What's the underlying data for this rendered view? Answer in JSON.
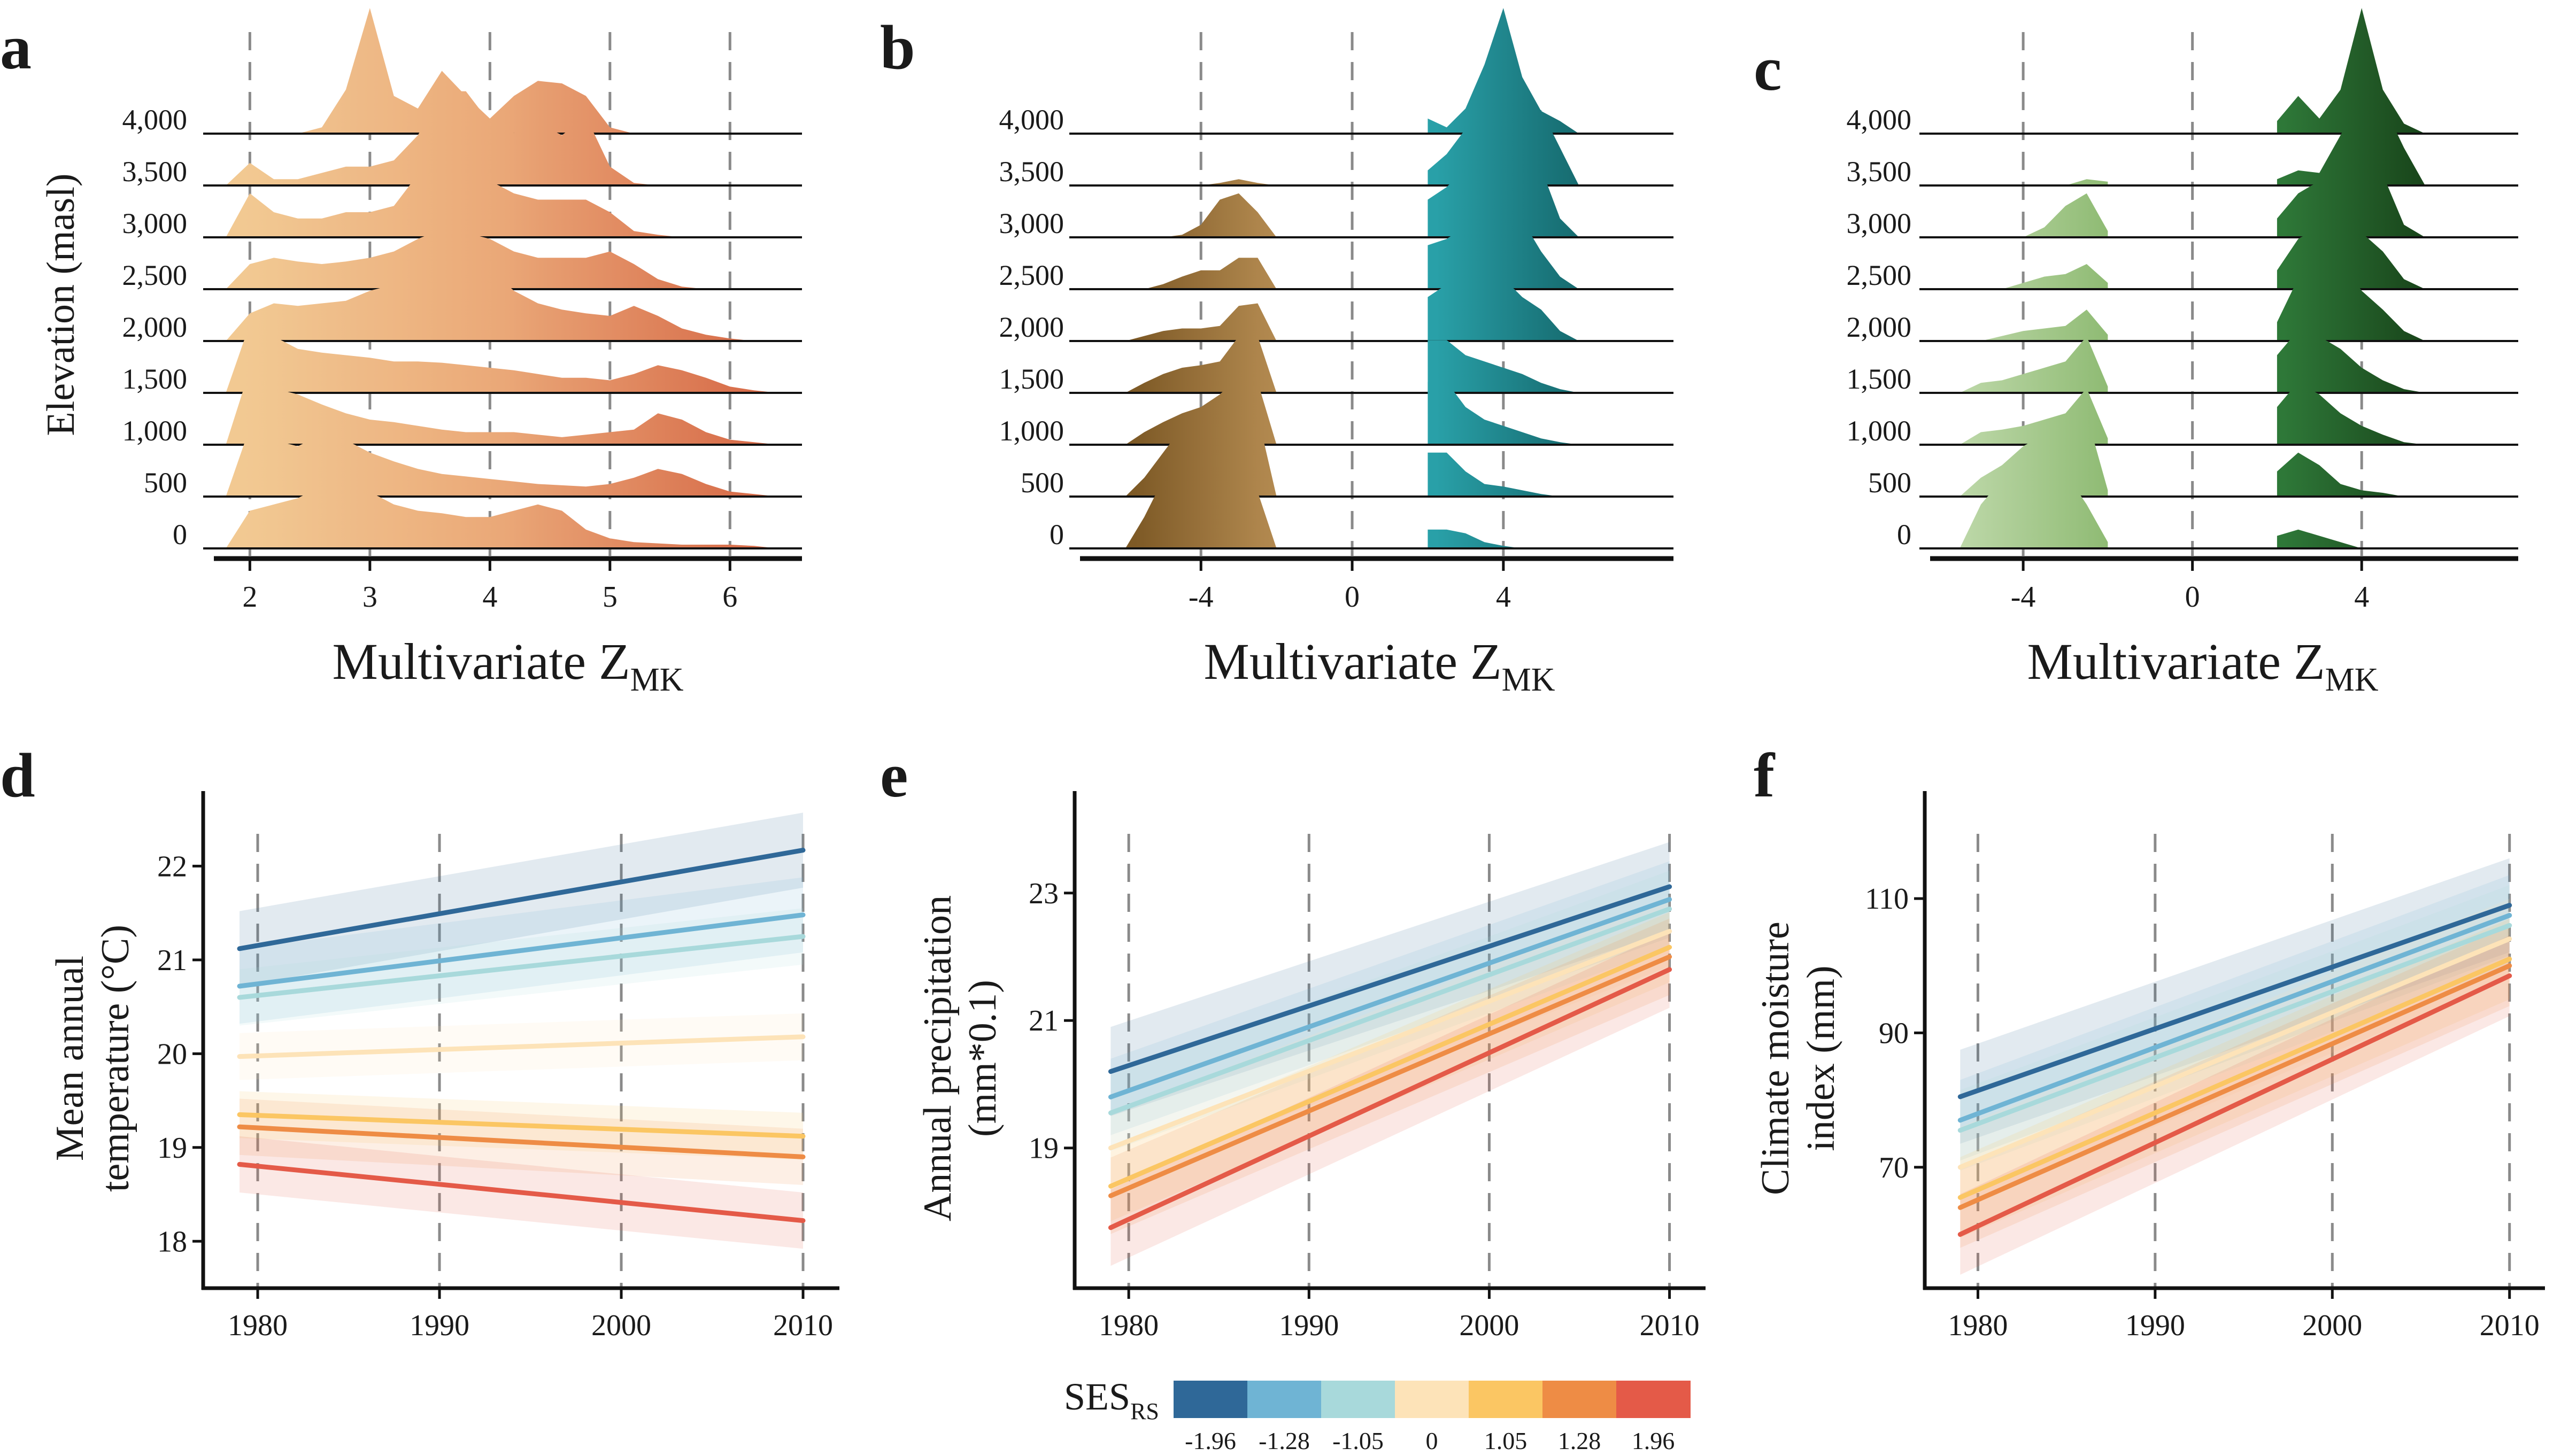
{
  "panels": {
    "a": {
      "label": "a",
      "ylabel": "Elevation (masl)",
      "xlabel_main": "Multivariate Z",
      "xlabel_sub": "MK",
      "xticks": [
        "2",
        "3",
        "4",
        "5",
        "6"
      ],
      "palette": [
        "#f2c992",
        "#eaa878",
        "#d76b49"
      ]
    },
    "b": {
      "label": "b",
      "xlabel_main": "Multivariate Z",
      "xlabel_sub": "MK",
      "xticks": [
        "-4",
        "0",
        "4"
      ],
      "palette_neg": [
        "#7a5623",
        "#b58c52"
      ],
      "palette_pos": [
        "#2aa3ab",
        "#166a6e"
      ]
    },
    "c": {
      "label": "c",
      "xlabel_main": "Multivariate Z",
      "xlabel_sub": "MK",
      "xticks": [
        "-4",
        "0",
        "4"
      ],
      "palette_neg": [
        "#c4dcb0",
        "#8fbb74"
      ],
      "palette_pos": [
        "#2f7a39",
        "#153d16"
      ]
    },
    "d": {
      "label": "d",
      "ylabel_line1": "Mean annual",
      "ylabel_line2": "temperature (°C)",
      "xticks": [
        "1980",
        "1990",
        "2000",
        "2010"
      ],
      "yticks": [
        "18",
        "19",
        "20",
        "21",
        "22"
      ]
    },
    "e": {
      "label": "e",
      "ylabel_line1": "Annual precipitation",
      "ylabel_line2": "(mm*0.1)",
      "xticks": [
        "1980",
        "1990",
        "2000",
        "2010"
      ],
      "yticks": [
        "19",
        "21",
        "23"
      ]
    },
    "f": {
      "label": "f",
      "ylabel_line1": "Climate moisture",
      "ylabel_line2": "index (mm)",
      "xticks": [
        "1980",
        "1990",
        "2000",
        "2010"
      ],
      "yticks": [
        "70",
        "90",
        "110"
      ]
    }
  },
  "elevations": [
    "4,000",
    "3,500",
    "3,000",
    "2,500",
    "2,000",
    "1,500",
    "1,000",
    "500",
    "0"
  ],
  "legend": {
    "title_main": "SES",
    "title_sub": "RS",
    "ticks": [
      "-1.96",
      "-1.28",
      "-1.05",
      "0",
      "1.05",
      "1.28",
      "1.96"
    ],
    "colors": [
      "#2f6898",
      "#6fb4d4",
      "#a8d9db",
      "#fde3b8",
      "#fbc663",
      "#ee8c45",
      "#e45a48"
    ]
  },
  "chart_data": [
    {
      "panel": "a",
      "type": "area",
      "subtype": "ridgeline density",
      "xlabel": "Multivariate Z_MK",
      "ylabel": "Elevation (masl)",
      "xlim": [
        1.7,
        6.6
      ],
      "x": [
        1.8,
        2.0,
        2.2,
        2.4,
        2.6,
        2.8,
        3.0,
        3.2,
        3.4,
        3.6,
        3.8,
        4.0,
        4.2,
        4.4,
        4.6,
        4.8,
        5.0,
        5.2,
        5.4,
        5.6,
        5.8,
        6.0,
        6.2,
        6.4
      ],
      "series": [
        {
          "name": "4,000",
          "values": [
            0,
            0,
            0,
            0,
            0.05,
            0.35,
            1.0,
            0.3,
            0.2,
            0.5,
            0.3,
            0.12,
            0.3,
            0.42,
            0.4,
            0.3,
            0.05,
            0,
            0,
            0,
            0,
            0,
            0,
            0
          ]
        },
        {
          "name": "3,500",
          "values": [
            0,
            0.18,
            0.05,
            0.05,
            0.1,
            0.15,
            0.15,
            0.2,
            0.4,
            0.75,
            0.75,
            0.5,
            0.42,
            0.5,
            0.4,
            0.55,
            0.15,
            0.02,
            0,
            0,
            0,
            0,
            0,
            0
          ]
        },
        {
          "name": "3,000",
          "values": [
            0,
            0.35,
            0.2,
            0.15,
            0.15,
            0.2,
            0.2,
            0.25,
            0.5,
            0.8,
            0.65,
            0.45,
            0.35,
            0.3,
            0.3,
            0.3,
            0.2,
            0.05,
            0.02,
            0,
            0,
            0,
            0,
            0
          ]
        },
        {
          "name": "2,500",
          "values": [
            0,
            0.2,
            0.25,
            0.22,
            0.2,
            0.22,
            0.25,
            0.3,
            0.4,
            0.48,
            0.45,
            0.4,
            0.3,
            0.25,
            0.25,
            0.25,
            0.3,
            0.2,
            0.08,
            0.02,
            0,
            0,
            0,
            0
          ]
        },
        {
          "name": "2,000",
          "values": [
            0,
            0.22,
            0.3,
            0.28,
            0.3,
            0.32,
            0.4,
            0.45,
            0.5,
            0.52,
            0.55,
            0.58,
            0.4,
            0.3,
            0.25,
            0.22,
            0.2,
            0.28,
            0.2,
            0.1,
            0.05,
            0.02,
            0,
            0
          ]
        },
        {
          "name": "1,500",
          "values": [
            0,
            0.55,
            0.45,
            0.35,
            0.32,
            0.3,
            0.28,
            0.25,
            0.25,
            0.24,
            0.22,
            0.2,
            0.18,
            0.15,
            0.12,
            0.12,
            0.1,
            0.15,
            0.22,
            0.18,
            0.12,
            0.05,
            0.02,
            0
          ]
        },
        {
          "name": "1,000",
          "values": [
            0,
            0.6,
            0.45,
            0.4,
            0.32,
            0.25,
            0.2,
            0.18,
            0.15,
            0.12,
            0.1,
            0.1,
            0.1,
            0.08,
            0.06,
            0.08,
            0.1,
            0.12,
            0.25,
            0.2,
            0.1,
            0.04,
            0.02,
            0
          ]
        },
        {
          "name": "500",
          "values": [
            0,
            0.55,
            0.45,
            0.4,
            0.5,
            0.45,
            0.35,
            0.28,
            0.22,
            0.18,
            0.16,
            0.14,
            0.12,
            0.1,
            0.09,
            0.08,
            0.1,
            0.15,
            0.22,
            0.18,
            0.1,
            0.04,
            0.02,
            0
          ]
        },
        {
          "name": "0",
          "values": [
            0,
            0.3,
            0.35,
            0.4,
            0.5,
            0.55,
            0.45,
            0.35,
            0.3,
            0.28,
            0.25,
            0.25,
            0.3,
            0.35,
            0.3,
            0.15,
            0.08,
            0.05,
            0.04,
            0.03,
            0.03,
            0.03,
            0.02,
            0
          ]
        }
      ]
    },
    {
      "panel": "b",
      "type": "area",
      "subtype": "ridgeline density",
      "xlabel": "Multivariate Z_MK",
      "xlim": [
        -7.2,
        8.5
      ],
      "x": [
        -6.0,
        -5.5,
        -5.0,
        -4.5,
        -4.0,
        -3.5,
        -3.0,
        -2.5,
        -2.0,
        2.0,
        2.5,
        3.0,
        3.5,
        4.0,
        4.5,
        5.0,
        5.5,
        6.0
      ],
      "series": [
        {
          "name": "4,000",
          "values": [
            0,
            0,
            0,
            0,
            0,
            0,
            0,
            0,
            0,
            0.12,
            0.05,
            0.2,
            0.55,
            1.0,
            0.45,
            0.18,
            0.1,
            0
          ]
        },
        {
          "name": "3,500",
          "values": [
            0,
            0,
            0,
            0,
            0,
            0.02,
            0.05,
            0.02,
            0,
            0.12,
            0.25,
            0.45,
            0.6,
            0.75,
            0.6,
            0.6,
            0.3,
            0
          ]
        },
        {
          "name": "3,000",
          "values": [
            0,
            0,
            0,
            0.02,
            0.1,
            0.3,
            0.35,
            0.2,
            0,
            0.3,
            0.4,
            0.55,
            0.75,
            0.8,
            0.6,
            0.55,
            0.15,
            0
          ]
        },
        {
          "name": "2,500",
          "values": [
            0,
            0,
            0.04,
            0.1,
            0.15,
            0.15,
            0.25,
            0.25,
            0,
            0.35,
            0.4,
            0.5,
            0.65,
            0.45,
            0.55,
            0.3,
            0.1,
            0
          ]
        },
        {
          "name": "2,000",
          "values": [
            0,
            0.04,
            0.08,
            0.1,
            0.1,
            0.12,
            0.28,
            0.3,
            0,
            0.35,
            0.45,
            0.5,
            0.55,
            0.5,
            0.35,
            0.25,
            0.08,
            0
          ]
        },
        {
          "name": "1,500",
          "values": [
            0,
            0.08,
            0.15,
            0.2,
            0.22,
            0.25,
            0.45,
            0.45,
            0,
            0.42,
            0.42,
            0.3,
            0.25,
            0.2,
            0.15,
            0.08,
            0.03,
            0
          ]
        },
        {
          "name": "1,000",
          "values": [
            0,
            0.1,
            0.18,
            0.25,
            0.3,
            0.4,
            0.55,
            0.5,
            0,
            0.5,
            0.5,
            0.3,
            0.2,
            0.15,
            0.1,
            0.05,
            0.02,
            0
          ]
        },
        {
          "name": "500",
          "values": [
            0,
            0.15,
            0.35,
            0.55,
            0.65,
            0.5,
            0.7,
            0.65,
            0,
            0.35,
            0.35,
            0.2,
            0.1,
            0.08,
            0.05,
            0.02,
            0,
            0
          ]
        },
        {
          "name": "0",
          "values": [
            0,
            0.25,
            0.55,
            0.8,
            0.9,
            0.9,
            0.75,
            0.45,
            0,
            0.15,
            0.15,
            0.12,
            0.05,
            0.02,
            0,
            0,
            0,
            0
          ]
        }
      ]
    },
    {
      "panel": "c",
      "type": "area",
      "subtype": "ridgeline density",
      "xlabel": "Multivariate Z_MK",
      "xlim": [
        -6.2,
        7.7
      ],
      "x": [
        -5.5,
        -5.0,
        -4.5,
        -4.0,
        -3.5,
        -3.0,
        -2.5,
        -2.0,
        2.0,
        2.5,
        3.0,
        3.5,
        4.0,
        4.5,
        5.0,
        5.5
      ],
      "series": [
        {
          "name": "4,000",
          "values": [
            0,
            0,
            0,
            0,
            0,
            0,
            0,
            0,
            0.1,
            0.3,
            0.12,
            0.35,
            1.0,
            0.35,
            0.08,
            0
          ]
        },
        {
          "name": "3,500",
          "values": [
            0,
            0,
            0,
            0,
            0,
            0,
            0.05,
            0.03,
            0.05,
            0.12,
            0.1,
            0.4,
            0.7,
            0.65,
            0.3,
            0
          ]
        },
        {
          "name": "3,000",
          "values": [
            0,
            0,
            0,
            0,
            0.08,
            0.25,
            0.35,
            0.05,
            0.15,
            0.35,
            0.45,
            0.55,
            0.75,
            0.5,
            0.1,
            0
          ]
        },
        {
          "name": "2,500",
          "values": [
            0,
            0,
            0,
            0.05,
            0.1,
            0.12,
            0.2,
            0.05,
            0.15,
            0.4,
            0.5,
            0.6,
            0.45,
            0.3,
            0.08,
            0
          ]
        },
        {
          "name": "2,000",
          "values": [
            0,
            0,
            0.04,
            0.08,
            0.1,
            0.12,
            0.25,
            0.05,
            0.15,
            0.5,
            0.45,
            0.65,
            0.4,
            0.25,
            0.08,
            0
          ]
        },
        {
          "name": "1,500",
          "values": [
            0,
            0.08,
            0.1,
            0.15,
            0.2,
            0.25,
            0.45,
            0.05,
            0.3,
            0.5,
            0.45,
            0.35,
            0.2,
            0.1,
            0.03,
            0
          ]
        },
        {
          "name": "1,000",
          "values": [
            0,
            0.1,
            0.12,
            0.15,
            0.2,
            0.25,
            0.45,
            0.05,
            0.3,
            0.5,
            0.4,
            0.25,
            0.15,
            0.08,
            0.02,
            0
          ]
        },
        {
          "name": "500",
          "values": [
            0,
            0.15,
            0.25,
            0.4,
            0.5,
            0.55,
            0.65,
            0.05,
            0.2,
            0.35,
            0.25,
            0.1,
            0.05,
            0.03,
            0,
            0
          ]
        },
        {
          "name": "0",
          "values": [
            0,
            0.35,
            0.55,
            0.7,
            0.75,
            0.6,
            0.35,
            0.05,
            0.1,
            0.15,
            0.1,
            0.05,
            0,
            0,
            0,
            0
          ]
        }
      ]
    },
    {
      "panel": "d",
      "type": "line",
      "ylabel": "Mean annual temperature (°C)",
      "xlim": [
        1977,
        2012
      ],
      "ylim": [
        17.5,
        22.8
      ],
      "x": [
        1979,
        2010
      ],
      "band_halfwidth": [
        0.4,
        0.4,
        0.3,
        0.25,
        0.25,
        0.3,
        0.3
      ],
      "series": [
        {
          "ses": "-1.96",
          "values": [
            21.12,
            22.17
          ]
        },
        {
          "ses": "-1.28",
          "values": [
            20.72,
            21.48
          ]
        },
        {
          "ses": "-1.05",
          "values": [
            20.6,
            21.25
          ]
        },
        {
          "ses": "0",
          "values": [
            19.97,
            20.18
          ]
        },
        {
          "ses": "1.05",
          "values": [
            19.35,
            19.12
          ]
        },
        {
          "ses": "1.28",
          "values": [
            19.22,
            18.9
          ]
        },
        {
          "ses": "1.96",
          "values": [
            18.82,
            18.22
          ]
        }
      ]
    },
    {
      "panel": "e",
      "type": "line",
      "ylabel": "Annual precipitation (mm*0.1)",
      "xlim": [
        1977,
        2012
      ],
      "ylim": [
        16.8,
        24.6
      ],
      "x": [
        1979,
        2010
      ],
      "band_halfwidth": [
        0.7,
        0.6,
        0.6,
        0.55,
        0.55,
        0.6,
        0.6
      ],
      "series": [
        {
          "ses": "-1.96",
          "values": [
            20.2,
            23.1
          ]
        },
        {
          "ses": "-1.28",
          "values": [
            19.8,
            22.9
          ]
        },
        {
          "ses": "-1.05",
          "values": [
            19.55,
            22.75
          ]
        },
        {
          "ses": "0",
          "values": [
            19.0,
            22.4
          ]
        },
        {
          "ses": "1.05",
          "values": [
            18.4,
            22.15
          ]
        },
        {
          "ses": "1.28",
          "values": [
            18.25,
            22.0
          ]
        },
        {
          "ses": "1.96",
          "values": [
            17.75,
            21.8
          ]
        }
      ]
    },
    {
      "panel": "f",
      "type": "line",
      "ylabel": "Climate moisture index (mm)",
      "xlim": [
        1977,
        2012
      ],
      "ylim": [
        52,
        126
      ],
      "x": [
        1979,
        2010
      ],
      "band_halfwidth": [
        7,
        6,
        6,
        6,
        6,
        6,
        6
      ],
      "series": [
        {
          "ses": "-1.96",
          "values": [
            80.5,
            109.0
          ]
        },
        {
          "ses": "-1.28",
          "values": [
            77.0,
            107.5
          ]
        },
        {
          "ses": "-1.05",
          "values": [
            75.5,
            106.0
          ]
        },
        {
          "ses": "0",
          "values": [
            70.0,
            104.0
          ]
        },
        {
          "ses": "1.05",
          "values": [
            65.5,
            101.0
          ]
        },
        {
          "ses": "1.28",
          "values": [
            64.0,
            100.0
          ]
        },
        {
          "ses": "1.96",
          "values": [
            60.0,
            98.5
          ]
        }
      ]
    }
  ]
}
